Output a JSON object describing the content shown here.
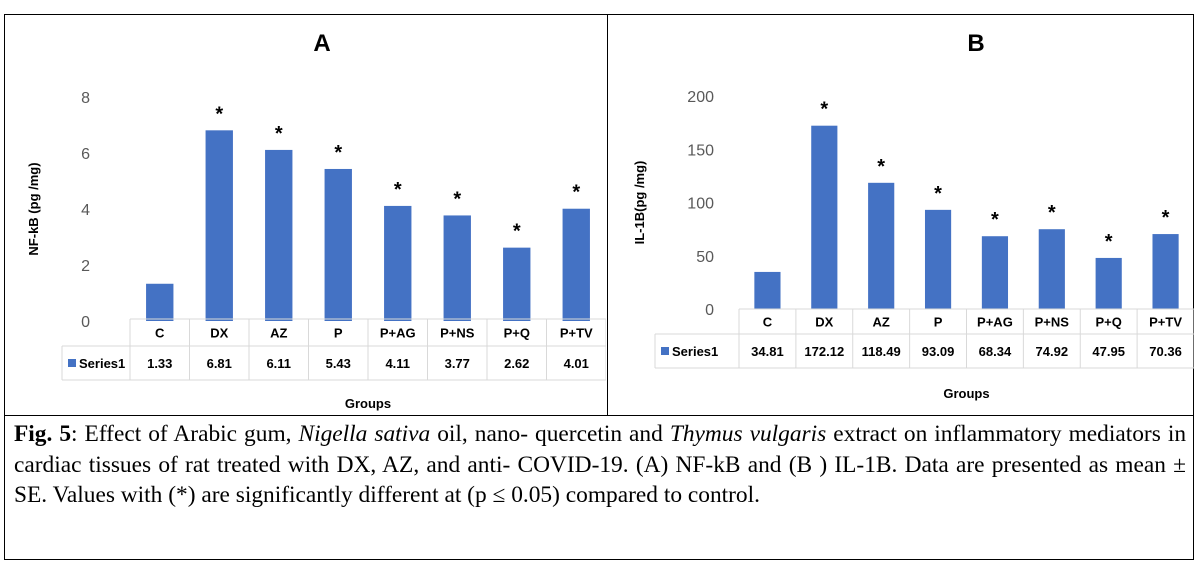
{
  "chart_data": [
    {
      "type": "bar",
      "title": "A",
      "xlabel": "Groups",
      "ylabel": "NF-kB (pg /mg)",
      "ylim": [
        0,
        8
      ],
      "ticks": [
        "0",
        "2",
        "4",
        "6",
        "8"
      ],
      "categories": [
        "C",
        "DX",
        "AZ",
        "P",
        "P+AG",
        "P+NS",
        "P+Q",
        "P+TV"
      ],
      "series": [
        {
          "name": "Series1",
          "values": [
            1.33,
            6.81,
            6.11,
            5.43,
            4.11,
            3.77,
            2.62,
            4.01
          ],
          "labels": [
            "1.33",
            "6.81",
            "6.11",
            "5.43",
            "4.11",
            "3.77",
            "2.62",
            "4.01"
          ]
        }
      ],
      "annotations": [
        "",
        "*",
        "*",
        "*",
        "*",
        "*",
        "*",
        "*"
      ],
      "color": "#4472C4",
      "data_table": true,
      "grid": false
    },
    {
      "type": "bar",
      "title": "B",
      "xlabel": "Groups",
      "ylabel": "IL-1B(pg /mg)",
      "ylim": [
        0,
        200
      ],
      "ticks": [
        "0",
        "50",
        "100",
        "150",
        "200"
      ],
      "categories": [
        "C",
        "DX",
        "AZ",
        "P",
        "P+AG",
        "P+NS",
        "P+Q",
        "P+TV"
      ],
      "series": [
        {
          "name": "Series1",
          "values": [
            34.81,
            172.12,
            118.49,
            93.09,
            68.34,
            74.92,
            47.95,
            70.36
          ],
          "labels": [
            "34.81",
            "172.12",
            "118.49",
            "93.09",
            "68.34",
            "74.92",
            "47.95",
            "70.36"
          ]
        }
      ],
      "annotations": [
        "",
        "*",
        "*",
        "*",
        "*",
        "*",
        "*",
        "*"
      ],
      "color": "#4472C4",
      "data_table": true,
      "grid": false
    }
  ],
  "caption": {
    "label": "Fig. 5",
    "p1": ": Effect of Arabic gum, ",
    "i1": "Nigella sativa",
    "p2": " oil, nano- quercetin and ",
    "i2": "Thymus vulgaris",
    "p3": " extract on inflammatory mediators in cardiac tissues of rat treated with DX, AZ, and anti- COVID-19. (A) NF-kB and (B ) IL-1B. Data are presented as mean ± SE. Values with (*) are significantly different at (p ≤ 0.05) compared to control."
  }
}
